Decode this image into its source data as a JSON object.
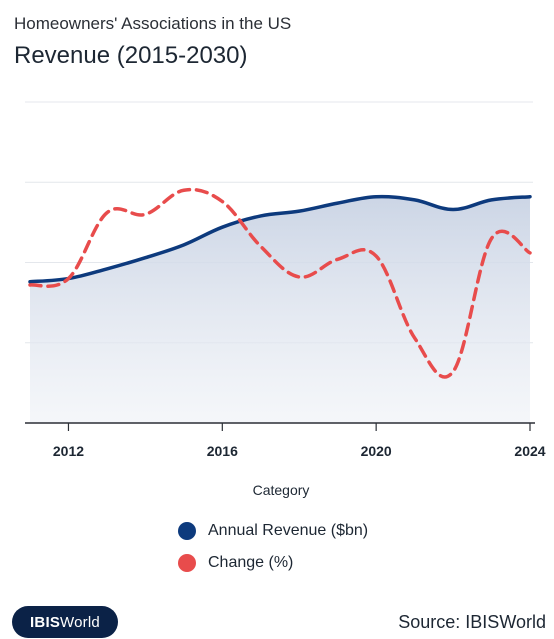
{
  "header": {
    "subtitle": "Homeowners' Associations in the US",
    "title": "Revenue (2015-2030)"
  },
  "chart_data": {
    "type": "line",
    "x": [
      2011,
      2012,
      2013,
      2014,
      2015,
      2016,
      2017,
      2018,
      2019,
      2020,
      2021,
      2022,
      2023,
      2024
    ],
    "xticks": [
      "2012",
      "2016",
      "2020",
      "2024"
    ],
    "xlabel": "Category",
    "series": [
      {
        "name": "Annual Revenue ($bn)",
        "color": "#0d3a7d",
        "style": "solid",
        "area": true,
        "values": [
          88,
          90,
          96,
          103,
          111,
          122,
          129,
          132,
          137,
          141,
          139,
          133,
          139,
          141
        ]
      },
      {
        "name": "Change (%)",
        "color": "#e84c4c",
        "style": "dashed",
        "values": [
          86,
          90,
          131,
          130,
          145,
          138,
          110,
          91,
          102,
          104,
          53,
          32,
          115,
          106
        ]
      }
    ],
    "ylim": [
      0,
      200
    ],
    "grid": true,
    "legend_position": "bottom"
  },
  "legend": {
    "items": [
      {
        "label": "Annual Revenue ($bn)",
        "color": "#0d3a7d"
      },
      {
        "label": "Change (%)",
        "color": "#e84c4c"
      }
    ]
  },
  "footer": {
    "logo_bold": "IBIS",
    "logo_rest": "World",
    "source": "Source: IBISWorld"
  }
}
